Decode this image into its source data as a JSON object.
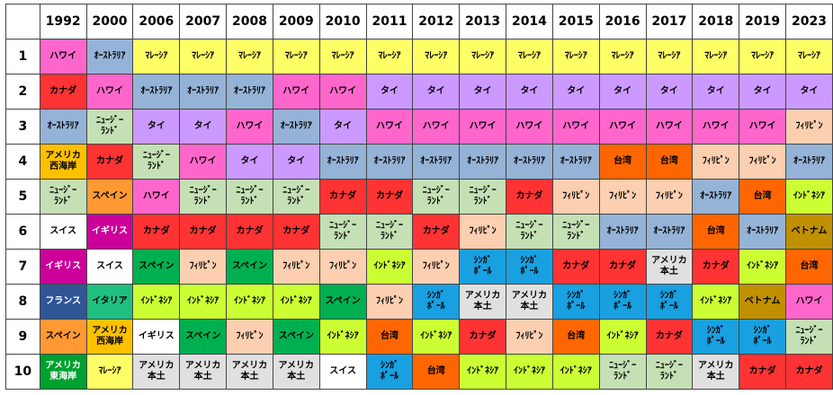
{
  "table": {
    "years": [
      "1992",
      "2000",
      "2006",
      "2007",
      "2008",
      "2009",
      "2010",
      "2011",
      "2012",
      "2013",
      "2014",
      "2015",
      "2016",
      "2017",
      "2018",
      "2019",
      "2023"
    ],
    "rows": [
      {
        "rank": "1",
        "cells": [
          {
            "text": "ハワイ",
            "color": "#ff66cc"
          },
          {
            "text": "ｵｰｽﾄﾗﾘｱ",
            "color": "#95b3d7"
          },
          {
            "text": "ﾏﾚｰｼｱ",
            "color": "#ffff66"
          },
          {
            "text": "ﾏﾚｰｼｱ",
            "color": "#ffff66"
          },
          {
            "text": "ﾏﾚｰｼｱ",
            "color": "#ffff66"
          },
          {
            "text": "ﾏﾚｰｼｱ",
            "color": "#ffff66"
          },
          {
            "text": "ﾏﾚｰｼｱ",
            "color": "#ffff66"
          },
          {
            "text": "ﾏﾚｰｼｱ",
            "color": "#ffff66"
          },
          {
            "text": "ﾏﾚｰｼｱ",
            "color": "#ffff66"
          },
          {
            "text": "ﾏﾚｰｼｱ",
            "color": "#ffff66"
          },
          {
            "text": "ﾏﾚｰｼｱ",
            "color": "#ffff66"
          },
          {
            "text": "ﾏﾚｰｼｱ",
            "color": "#ffff66"
          },
          {
            "text": "ﾏﾚｰｼｱ",
            "color": "#ffff66"
          },
          {
            "text": "ﾏﾚｰｼｱ",
            "color": "#ffff66"
          },
          {
            "text": "ﾏﾚｰｼｱ",
            "color": "#ffff66"
          },
          {
            "text": "ﾏﾚｰｼｱ",
            "color": "#ffff66"
          },
          {
            "text": "ﾏﾚｰｼｱ",
            "color": "#ffff66"
          }
        ]
      },
      {
        "rank": "2",
        "cells": [
          {
            "text": "カナダ",
            "color": "#ff3333"
          },
          {
            "text": "ハワイ",
            "color": "#ff66cc"
          },
          {
            "text": "ｵｰｽﾄﾗﾘｱ",
            "color": "#95b3d7"
          },
          {
            "text": "ｵｰｽﾄﾗﾘｱ",
            "color": "#95b3d7"
          },
          {
            "text": "ｵｰｽﾄﾗﾘｱ",
            "color": "#95b3d7"
          },
          {
            "text": "ハワイ",
            "color": "#ff66cc"
          },
          {
            "text": "ハワイ",
            "color": "#ff66cc"
          },
          {
            "text": "タイ",
            "color": "#cc99ff"
          },
          {
            "text": "タイ",
            "color": "#cc99ff"
          },
          {
            "text": "タイ",
            "color": "#cc99ff"
          },
          {
            "text": "タイ",
            "color": "#cc99ff"
          },
          {
            "text": "タイ",
            "color": "#cc99ff"
          },
          {
            "text": "タイ",
            "color": "#cc99ff"
          },
          {
            "text": "タイ",
            "color": "#cc99ff"
          },
          {
            "text": "タイ",
            "color": "#cc99ff"
          },
          {
            "text": "タイ",
            "color": "#cc99ff"
          },
          {
            "text": "タイ",
            "color": "#cc99ff"
          }
        ]
      },
      {
        "rank": "3",
        "cells": [
          {
            "text": "ｵｰｽﾄﾗﾘｱ",
            "color": "#95b3d7"
          },
          {
            "text": "ﾆｭｰｼﾞｰ\nﾗﾝﾄﾞ",
            "color": "#c4e0b4"
          },
          {
            "text": "タイ",
            "color": "#cc99ff"
          },
          {
            "text": "タイ",
            "color": "#cc99ff"
          },
          {
            "text": "ハワイ",
            "color": "#ff66cc"
          },
          {
            "text": "ｵｰｽﾄﾗﾘｱ",
            "color": "#95b3d7"
          },
          {
            "text": "タイ",
            "color": "#cc99ff"
          },
          {
            "text": "ハワイ",
            "color": "#ff66cc"
          },
          {
            "text": "ハワイ",
            "color": "#ff66cc"
          },
          {
            "text": "ハワイ",
            "color": "#ff66cc"
          },
          {
            "text": "ハワイ",
            "color": "#ff66cc"
          },
          {
            "text": "ハワイ",
            "color": "#ff66cc"
          },
          {
            "text": "ハワイ",
            "color": "#ff66cc"
          },
          {
            "text": "ハワイ",
            "color": "#ff66cc"
          },
          {
            "text": "ハワイ",
            "color": "#ff66cc"
          },
          {
            "text": "ハワイ",
            "color": "#ff66cc"
          },
          {
            "text": "ﾌｨﾘﾋﾟﾝ",
            "color": "#fbcfb0"
          }
        ]
      },
      {
        "rank": "4",
        "cells": [
          {
            "text": "アメリカ\n西海岸",
            "color": "#ffc000"
          },
          {
            "text": "カナダ",
            "color": "#ff3333"
          },
          {
            "text": "ﾆｭｰｼﾞｰ\nﾗﾝﾄﾞ",
            "color": "#c4e0b4"
          },
          {
            "text": "ハワイ",
            "color": "#ff66cc"
          },
          {
            "text": "タイ",
            "color": "#cc99ff"
          },
          {
            "text": "タイ",
            "color": "#cc99ff"
          },
          {
            "text": "ｵｰｽﾄﾗﾘｱ",
            "color": "#95b3d7"
          },
          {
            "text": "ｵｰｽﾄﾗﾘｱ",
            "color": "#95b3d7"
          },
          {
            "text": "ｵｰｽﾄﾗﾘｱ",
            "color": "#95b3d7"
          },
          {
            "text": "ｵｰｽﾄﾗﾘｱ",
            "color": "#95b3d7"
          },
          {
            "text": "ｵｰｽﾄﾗﾘｱ",
            "color": "#95b3d7"
          },
          {
            "text": "ｵｰｽﾄﾗﾘｱ",
            "color": "#95b3d7"
          },
          {
            "text": "台湾",
            "color": "#ff6600"
          },
          {
            "text": "台湾",
            "color": "#ff6600"
          },
          {
            "text": "ﾌｨﾘﾋﾟﾝ",
            "color": "#fbcfb0"
          },
          {
            "text": "ﾌｨﾘﾋﾟﾝ",
            "color": "#fbcfb0"
          },
          {
            "text": "ｵｰｽﾄﾗﾘｱ",
            "color": "#95b3d7"
          }
        ]
      },
      {
        "rank": "5",
        "cells": [
          {
            "text": "ﾆｭｰｼﾞｰ\nﾗﾝﾄﾞ",
            "color": "#c4e0b4"
          },
          {
            "text": "スペイン",
            "color": "#ff9933"
          },
          {
            "text": "ハワイ",
            "color": "#ff66cc"
          },
          {
            "text": "ﾆｭｰｼﾞｰ\nﾗﾝﾄﾞ",
            "color": "#c4e0b4"
          },
          {
            "text": "ﾆｭｰｼﾞｰ\nﾗﾝﾄﾞ",
            "color": "#c4e0b4"
          },
          {
            "text": "ﾆｭｰｼﾞｰ\nﾗﾝﾄﾞ",
            "color": "#c4e0b4"
          },
          {
            "text": "カナダ",
            "color": "#ff3333"
          },
          {
            "text": "カナダ",
            "color": "#ff3333"
          },
          {
            "text": "ﾆｭｰｼﾞｰ\nﾗﾝﾄﾞ",
            "color": "#c4e0b4"
          },
          {
            "text": "ﾆｭｰｼﾞｰ\nﾗﾝﾄﾞ",
            "color": "#c4e0b4"
          },
          {
            "text": "カナダ",
            "color": "#ff3333"
          },
          {
            "text": "ﾌｨﾘﾋﾟﾝ",
            "color": "#fbcfb0"
          },
          {
            "text": "ﾌｨﾘﾋﾟﾝ",
            "color": "#fbcfb0"
          },
          {
            "text": "ﾌｨﾘﾋﾟﾝ",
            "color": "#fbcfb0"
          },
          {
            "text": "ｵｰｽﾄﾗﾘｱ",
            "color": "#95b3d7"
          },
          {
            "text": "台湾",
            "color": "#ff6600"
          },
          {
            "text": "ｲﾝﾄﾞﾈｼｱ",
            "color": "#ccff33"
          }
        ]
      },
      {
        "rank": "6",
        "cells": [
          {
            "text": "スイス",
            "color": "#ffffff"
          },
          {
            "text": "イギリス",
            "color": "#cc0099"
          },
          {
            "text": "カナダ",
            "color": "#ff3333"
          },
          {
            "text": "カナダ",
            "color": "#ff3333"
          },
          {
            "text": "カナダ",
            "color": "#ff3333"
          },
          {
            "text": "カナダ",
            "color": "#ff3333"
          },
          {
            "text": "ﾆｭｰｼﾞｰ\nﾗﾝﾄﾞ",
            "color": "#c4e0b4"
          },
          {
            "text": "ﾆｭｰｼﾞｰ\nﾗﾝﾄﾞ",
            "color": "#c4e0b4"
          },
          {
            "text": "カナダ",
            "color": "#ff3333"
          },
          {
            "text": "ﾌｨﾘﾋﾟﾝ",
            "color": "#fbcfb0"
          },
          {
            "text": "ﾆｭｰｼﾞｰ\nﾗﾝﾄﾞ",
            "color": "#c4e0b4"
          },
          {
            "text": "ﾆｭｰｼﾞｰ\nﾗﾝﾄﾞ",
            "color": "#c4e0b4"
          },
          {
            "text": "ｵｰｽﾄﾗﾘｱ",
            "color": "#95b3d7"
          },
          {
            "text": "ｵｰｽﾄﾗﾘｱ",
            "color": "#95b3d7"
          },
          {
            "text": "台湾",
            "color": "#ff6600"
          },
          {
            "text": "ｵｰｽﾄﾗﾘｱ",
            "color": "#95b3d7"
          },
          {
            "text": "ベトナム",
            "color": "#c09000"
          }
        ]
      },
      {
        "rank": "7",
        "cells": [
          {
            "text": "イギリス",
            "color": "#cc0099"
          },
          {
            "text": "スイス",
            "color": "#ffffff"
          },
          {
            "text": "スペイン",
            "color": "#00b050"
          },
          {
            "text": "ﾌｨﾘﾋﾟﾝ",
            "color": "#fbcfb0"
          },
          {
            "text": "スペイン",
            "color": "#00b050"
          },
          {
            "text": "ﾌｨﾘﾋﾟﾝ",
            "color": "#fbcfb0"
          },
          {
            "text": "ﾌｨﾘﾋﾟﾝ",
            "color": "#fbcfb0"
          },
          {
            "text": "ｲﾝﾄﾞﾈｼｱ",
            "color": "#ccff33"
          },
          {
            "text": "ﾌｨﾘﾋﾟﾝ",
            "color": "#fbcfb0"
          },
          {
            "text": "ｼﾝｶﾞ\nﾎﾟｰﾙ",
            "color": "#19a0e0"
          },
          {
            "text": "ｼﾝｶﾞ\nﾎﾟｰﾙ",
            "color": "#19a0e0"
          },
          {
            "text": "カナダ",
            "color": "#ff3333"
          },
          {
            "text": "カナダ",
            "color": "#ff3333"
          },
          {
            "text": "アメリカ\n本土",
            "color": "#e0e0e0"
          },
          {
            "text": "カナダ",
            "color": "#ff3333"
          },
          {
            "text": "ｲﾝﾄﾞﾈｼｱ",
            "color": "#ccff33"
          },
          {
            "text": "台湾",
            "color": "#ff6600"
          }
        ]
      },
      {
        "rank": "8",
        "cells": [
          {
            "text": "フランス",
            "color": "#2f5597"
          },
          {
            "text": "イタリア",
            "color": "#1fbf80"
          },
          {
            "text": "ｲﾝﾄﾞﾈｼｱ",
            "color": "#ccff33"
          },
          {
            "text": "ｲﾝﾄﾞﾈｼｱ",
            "color": "#ccff33"
          },
          {
            "text": "ｲﾝﾄﾞﾈｼｱ",
            "color": "#ccff33"
          },
          {
            "text": "ｲﾝﾄﾞﾈｼｱ",
            "color": "#ccff33"
          },
          {
            "text": "スペイン",
            "color": "#00b050"
          },
          {
            "text": "ﾌｨﾘﾋﾟﾝ",
            "color": "#fbcfb0"
          },
          {
            "text": "ｼﾝｶﾞ\nﾎﾟｰﾙ",
            "color": "#19a0e0"
          },
          {
            "text": "アメリカ\n本土",
            "color": "#e0e0e0"
          },
          {
            "text": "アメリカ\n本土",
            "color": "#e0e0e0"
          },
          {
            "text": "ｼﾝｶﾞ\nﾎﾟｰﾙ",
            "color": "#19a0e0"
          },
          {
            "text": "ｼﾝｶﾞ\nﾎﾟｰﾙ",
            "color": "#19a0e0"
          },
          {
            "text": "ｼﾝｶﾞ\nﾎﾟｰﾙ",
            "color": "#19a0e0"
          },
          {
            "text": "ｲﾝﾄﾞﾈｼｱ",
            "color": "#ccff33"
          },
          {
            "text": "ベトナム",
            "color": "#c09000"
          },
          {
            "text": "ハワイ",
            "color": "#ff66cc"
          }
        ]
      },
      {
        "rank": "9",
        "cells": [
          {
            "text": "スペイン",
            "color": "#ff9933"
          },
          {
            "text": "アメリカ\n西海岸",
            "color": "#ffc000"
          },
          {
            "text": "イギリス",
            "color": "#ffffff"
          },
          {
            "text": "スペイン",
            "color": "#00b050"
          },
          {
            "text": "ﾌｨﾘﾋﾟﾝ",
            "color": "#fbcfb0"
          },
          {
            "text": "スペイン",
            "color": "#00b050"
          },
          {
            "text": "ｲﾝﾄﾞﾈｼｱ",
            "color": "#ccff33"
          },
          {
            "text": "台湾",
            "color": "#ff6600"
          },
          {
            "text": "ｲﾝﾄﾞﾈｼｱ",
            "color": "#ccff33"
          },
          {
            "text": "カナダ",
            "color": "#ff3333"
          },
          {
            "text": "ﾌｨﾘﾋﾟﾝ",
            "color": "#fbcfb0"
          },
          {
            "text": "台湾",
            "color": "#ff6600"
          },
          {
            "text": "ｲﾝﾄﾞﾈｼｱ",
            "color": "#ccff33"
          },
          {
            "text": "カナダ",
            "color": "#ff3333"
          },
          {
            "text": "ｼﾝｶﾞ\nﾎﾟｰﾙ",
            "color": "#19a0e0"
          },
          {
            "text": "ｼﾝｶﾞ\nﾎﾟｰﾙ",
            "color": "#19a0e0"
          },
          {
            "text": "ﾆｭｰｼﾞｰ\nﾗﾝﾄﾞ",
            "color": "#c4e0b4"
          }
        ]
      },
      {
        "rank": "10",
        "cells": [
          {
            "text": "アメリカ\n東海岸",
            "color": "#00a030"
          },
          {
            "text": "ﾏﾚｰｼｱ",
            "color": "#ffff66"
          },
          {
            "text": "アメリカ\n本土",
            "color": "#e0e0e0"
          },
          {
            "text": "アメリカ\n本土",
            "color": "#e0e0e0"
          },
          {
            "text": "アメリカ\n本土",
            "color": "#e0e0e0"
          },
          {
            "text": "アメリカ\n本土",
            "color": "#e0e0e0"
          },
          {
            "text": "スイス",
            "color": "#ffffff"
          },
          {
            "text": "ｼﾝｶﾞ\nﾎﾟｰﾙ",
            "color": "#19a0e0"
          },
          {
            "text": "台湾",
            "color": "#ff6600"
          },
          {
            "text": "ｲﾝﾄﾞﾈｼｱ",
            "color": "#ccff33"
          },
          {
            "text": "ｲﾝﾄﾞﾈｼｱ",
            "color": "#ccff33"
          },
          {
            "text": "ｲﾝﾄﾞﾈｼｱ",
            "color": "#ccff33"
          },
          {
            "text": "ﾆｭｰｼﾞｰ\nﾗﾝﾄﾞ",
            "color": "#c4e0b4"
          },
          {
            "text": "ﾆｭｰｼﾞｰ\nﾗﾝﾄﾞ",
            "color": "#c4e0b4"
          },
          {
            "text": "アメリカ\n本土",
            "color": "#e0e0e0"
          },
          {
            "text": "カナダ",
            "color": "#ff3333"
          },
          {
            "text": "カナダ",
            "color": "#ff3333"
          }
        ]
      }
    ]
  }
}
